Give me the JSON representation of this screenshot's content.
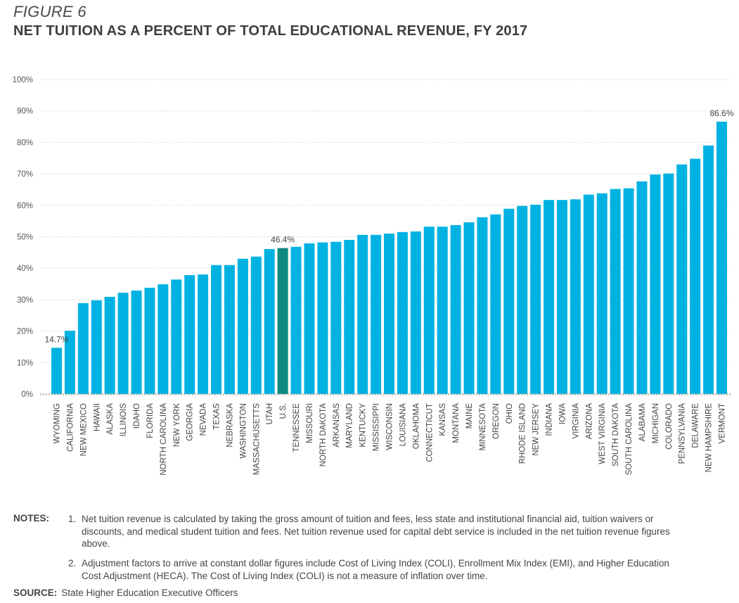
{
  "figure": {
    "label": "FIGURE 6",
    "title": "NET TUITION AS A PERCENT OF TOTAL EDUCATIONAL REVENUE, FY 2017"
  },
  "chart_data": {
    "type": "bar",
    "title": "NET TUITION AS A PERCENT OF TOTAL EDUCATIONAL REVENUE, FY 2017",
    "xlabel": "",
    "ylabel": "",
    "ylim": [
      0,
      100
    ],
    "grid": true,
    "y_ticks": [
      "0%",
      "10%",
      "20%",
      "30%",
      "40%",
      "50%",
      "60%",
      "70%",
      "80%",
      "90%",
      "100%"
    ],
    "y_tick_values": [
      0,
      10,
      20,
      30,
      40,
      50,
      60,
      70,
      80,
      90,
      100
    ],
    "colors": {
      "default": "#00B2E2",
      "highlight": "#0E8A7E",
      "grid": "#c8c8c8"
    },
    "highlight_category": "U.S.",
    "categories": [
      "WYOMING",
      "CALIFORNIA",
      "NEW MEXICO",
      "HAWAII",
      "ALASKA",
      "ILLINOIS",
      "IDAHO",
      "FLORIDA",
      "NORTH CAROLINA",
      "NEW YORK",
      "GEORGIA",
      "NEVADA",
      "TEXAS",
      "NEBRASKA",
      "WASHINGTON",
      "MASSACHUSETTS",
      "UTAH",
      "U.S.",
      "TENNESSEE",
      "MISSOURI",
      "NORTH DAKOTA",
      "ARKANSAS",
      "MARYLAND",
      "KENTUCKY",
      "MISSISSIPPI",
      "WISCONSIN",
      "LOUISIANA",
      "OKLAHOMA",
      "CONNECTICUT",
      "KANSAS",
      "MONTANA",
      "MAINE",
      "MINNESOTA",
      "OREGON",
      "OHIO",
      "RHODE ISLAND",
      "NEW JERSEY",
      "INDIANA",
      "IOWA",
      "VIRGINIA",
      "ARIZONA",
      "WEST VIRGINIA",
      "SOUTH DAKOTA",
      "SOUTH CAROLINA",
      "ALABAMA",
      "MICHIGAN",
      "COLORADO",
      "PENNSYLVANIA",
      "DELAWARE",
      "NEW HAMPSHIRE",
      "VERMONT"
    ],
    "values": [
      14.7,
      20.1,
      28.9,
      29.8,
      30.9,
      32.2,
      32.9,
      33.8,
      34.9,
      36.4,
      37.8,
      38.0,
      41.0,
      41.0,
      43.0,
      43.7,
      46.1,
      46.4,
      46.8,
      47.9,
      48.2,
      48.4,
      49.0,
      50.6,
      50.6,
      51.0,
      51.5,
      51.7,
      53.2,
      53.2,
      53.7,
      54.6,
      56.2,
      57.1,
      58.9,
      59.8,
      60.2,
      61.7,
      61.7,
      61.9,
      63.4,
      63.8,
      65.2,
      65.4,
      67.6,
      69.8,
      70.1,
      73.0,
      74.8,
      79.0,
      86.6
    ],
    "data_labels": [
      {
        "category": "WYOMING",
        "text": "14.7%"
      },
      {
        "category": "U.S.",
        "text": "46.4%"
      },
      {
        "category": "VERMONT",
        "text": "86.6%"
      }
    ]
  },
  "notes": {
    "label": "NOTES:",
    "items": [
      {
        "num": "1.",
        "text": "Net tuition revenue is calculated by taking the gross amount of tuition and fees, less state and institutional financial aid, tuition waivers or discounts, and medical student tuition and fees. Net tuition revenue used for capital debt service is included in the net tuition revenue figures above."
      },
      {
        "num": "2.",
        "text": "Adjustment factors to arrive at constant dollar figures include Cost of Living Index (COLI), Enrollment Mix Index (EMI), and Higher Education Cost Adjustment (HECA). The Cost of Living Index (COLI) is not a measure of inflation over time."
      }
    ]
  },
  "source": {
    "label": "SOURCE:",
    "text": "State Higher Education Executive Officers"
  }
}
